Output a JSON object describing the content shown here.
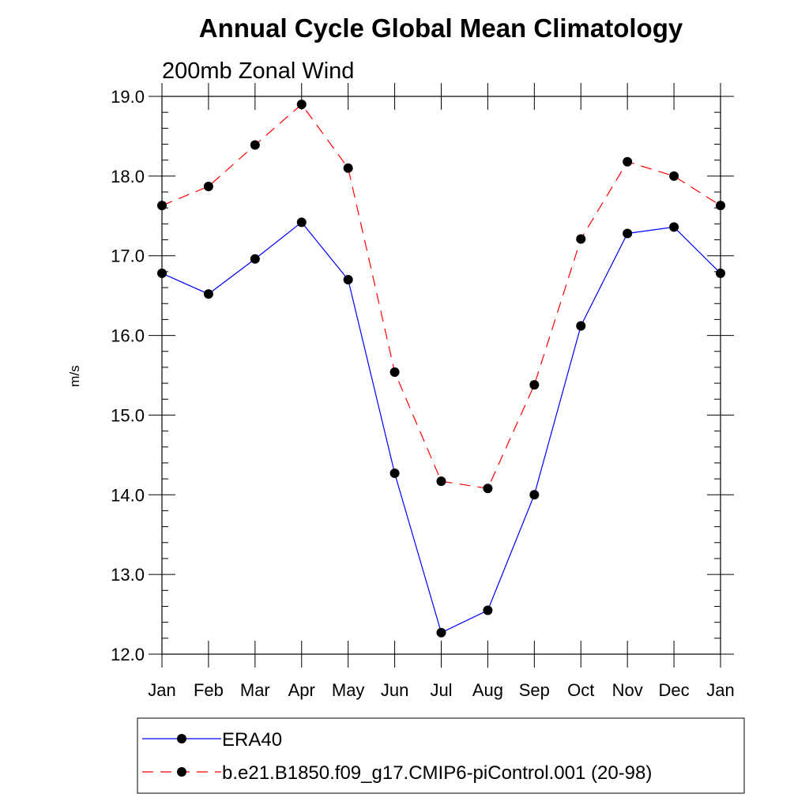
{
  "chart_data": {
    "type": "line",
    "title": "Annual Cycle Global Mean Climatology",
    "subtitle": "200mb Zonal Wind",
    "xlabel": "",
    "ylabel": "m/s",
    "categories": [
      "Jan",
      "Feb",
      "Mar",
      "Apr",
      "May",
      "Jun",
      "Jul",
      "Aug",
      "Sep",
      "Oct",
      "Nov",
      "Dec",
      "Jan"
    ],
    "ylim": [
      12.0,
      19.0
    ],
    "yticks": [
      "12.0",
      "13.0",
      "14.0",
      "15.0",
      "16.0",
      "17.0",
      "18.0",
      "19.0"
    ],
    "grid": false,
    "legend_position": "bottom",
    "series": [
      {
        "name": "ERA40",
        "color": "#0000ff",
        "style": "solid",
        "values": [
          16.78,
          16.52,
          16.96,
          17.42,
          16.7,
          14.27,
          12.27,
          12.55,
          14.0,
          16.12,
          17.28,
          17.36,
          16.78
        ]
      },
      {
        "name": "b.e21.B1850.f09_g17.CMIP6-piControl.001 (20-98)",
        "color": "#ff0000",
        "style": "dashed",
        "values": [
          17.63,
          17.87,
          18.39,
          18.9,
          18.1,
          15.54,
          14.17,
          14.08,
          15.38,
          17.21,
          18.18,
          18.0,
          17.63
        ]
      }
    ]
  }
}
